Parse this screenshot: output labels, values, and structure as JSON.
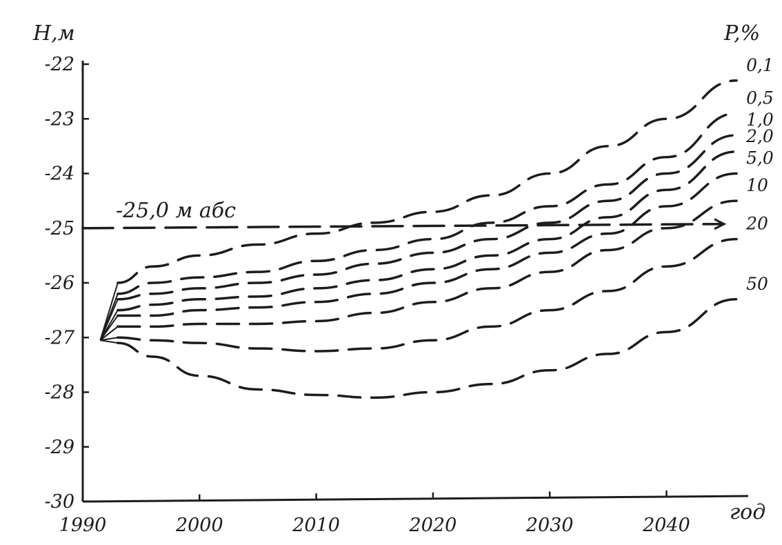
{
  "chart_data": {
    "type": "line",
    "title": "",
    "ylabel": "H,м",
    "xlabel": "год",
    "legend_title": "P,%",
    "annotation": "-25,0 м абс",
    "xlim": [
      1990,
      2047
    ],
    "ylim": [
      -30,
      -22
    ],
    "grid": false,
    "x_ticks": [
      {
        "value": 1990,
        "label": "1990"
      },
      {
        "value": 2000,
        "label": "2000"
      },
      {
        "value": 2010,
        "label": "2010"
      },
      {
        "value": 2020,
        "label": "2020"
      },
      {
        "value": 2030,
        "label": "2030"
      },
      {
        "value": 2040,
        "label": "2040"
      }
    ],
    "y_ticks": [
      {
        "value": -22,
        "label": "-22"
      },
      {
        "value": -23,
        "label": "-23"
      },
      {
        "value": -24,
        "label": "-24"
      },
      {
        "value": -25,
        "label": "-25"
      },
      {
        "value": -26,
        "label": "-26"
      },
      {
        "value": -27,
        "label": "-27"
      },
      {
        "value": -28,
        "label": "-28"
      },
      {
        "value": -29,
        "label": "-29"
      },
      {
        "value": -30,
        "label": "-30"
      }
    ],
    "reference_line": {
      "y": -25.0,
      "x": [
        1990,
        2047
      ]
    },
    "series": [
      {
        "name": "0,1",
        "x": [
          1993,
          1996,
          2000,
          2005,
          2010,
          2015,
          2020,
          2025,
          2030,
          2035,
          2040,
          2046
        ],
        "y": [
          -26.0,
          -25.7,
          -25.5,
          -25.3,
          -25.1,
          -24.9,
          -24.7,
          -24.4,
          -24.0,
          -23.5,
          -23.0,
          -22.3
        ]
      },
      {
        "name": "0,5",
        "x": [
          1993,
          1996,
          2000,
          2005,
          2010,
          2015,
          2020,
          2025,
          2030,
          2035,
          2040,
          2046
        ],
        "y": [
          -26.2,
          -26.0,
          -25.9,
          -25.8,
          -25.6,
          -25.4,
          -25.2,
          -24.9,
          -24.6,
          -24.2,
          -23.7,
          -22.9
        ]
      },
      {
        "name": "1,0",
        "x": [
          1993,
          1996,
          2000,
          2005,
          2010,
          2015,
          2020,
          2025,
          2030,
          2035,
          2040,
          2046
        ],
        "y": [
          -26.3,
          -26.2,
          -26.1,
          -26.0,
          -25.85,
          -25.65,
          -25.45,
          -25.2,
          -24.9,
          -24.5,
          -24.0,
          -23.3
        ]
      },
      {
        "name": "2,0",
        "x": [
          1993,
          1996,
          2000,
          2005,
          2010,
          2015,
          2020,
          2025,
          2030,
          2035,
          2040,
          2046
        ],
        "y": [
          -26.5,
          -26.4,
          -26.3,
          -26.25,
          -26.1,
          -25.95,
          -25.75,
          -25.5,
          -25.2,
          -24.8,
          -24.3,
          -23.6
        ]
      },
      {
        "name": "5,0",
        "x": [
          1993,
          1996,
          2000,
          2005,
          2010,
          2015,
          2020,
          2025,
          2030,
          2035,
          2040,
          2046
        ],
        "y": [
          -26.6,
          -26.6,
          -26.5,
          -26.45,
          -26.35,
          -26.2,
          -26.0,
          -25.75,
          -25.45,
          -25.1,
          -24.6,
          -24.0
        ]
      },
      {
        "name": "10",
        "x": [
          1993,
          1996,
          2000,
          2005,
          2010,
          2015,
          2020,
          2025,
          2030,
          2035,
          2040,
          2046
        ],
        "y": [
          -26.8,
          -26.8,
          -26.75,
          -26.75,
          -26.7,
          -26.55,
          -26.35,
          -26.1,
          -25.8,
          -25.4,
          -25.0,
          -24.5
        ]
      },
      {
        "name": "20",
        "x": [
          1993,
          1996,
          2000,
          2005,
          2010,
          2015,
          2020,
          2025,
          2030,
          2035,
          2040,
          2046
        ],
        "y": [
          -27.0,
          -27.05,
          -27.1,
          -27.2,
          -27.25,
          -27.2,
          -27.05,
          -26.8,
          -26.5,
          -26.15,
          -25.7,
          -25.2
        ]
      },
      {
        "name": "50",
        "x": [
          1993,
          1996,
          2000,
          2005,
          2010,
          2015,
          2020,
          2025,
          2030,
          2035,
          2040,
          2046
        ],
        "y": [
          -27.1,
          -27.35,
          -27.7,
          -27.95,
          -28.05,
          -28.1,
          -28.0,
          -27.85,
          -27.6,
          -27.3,
          -26.9,
          -26.3
        ]
      }
    ],
    "colors": {
      "ink": "#1c1c1c",
      "background": "#ffffff"
    }
  }
}
